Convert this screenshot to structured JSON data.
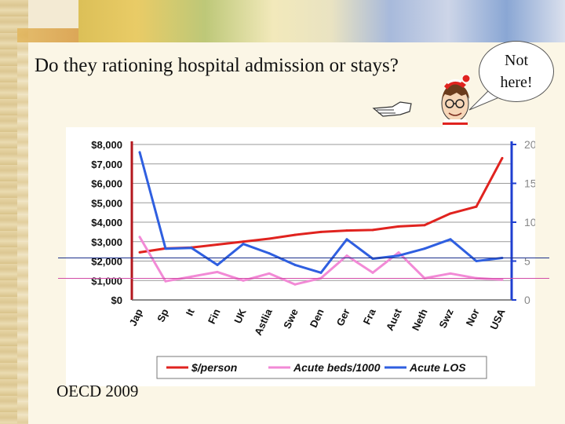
{
  "slide": {
    "title": "Do they rationing hospital admission or stays?",
    "footer": "OECD 2009",
    "bubble_line1": "Not",
    "bubble_line2": "here!",
    "character": "waldo-illustration"
  },
  "colors": {
    "cost": "#e0231f",
    "beds": "#f28ad6",
    "los": "#2f5fe0",
    "left_axis": "#b3171d",
    "right_axis": "#1f3fd0"
  },
  "chart_data": {
    "type": "line",
    "title": "",
    "categories": [
      "Jap",
      "Sp",
      "It",
      "Fin",
      "UK",
      "Astlia",
      "Swe",
      "Den",
      "Ger",
      "Fra",
      "Aust",
      "Neth",
      "Swz",
      "Nor",
      "USA"
    ],
    "y_left": {
      "ticks": [
        "$0",
        "$1,000",
        "$2,000",
        "$3,000",
        "$4,000",
        "$5,000",
        "$6,000",
        "$7,000",
        "$8,000"
      ],
      "ylim": [
        0,
        8000
      ]
    },
    "y_right": {
      "ticks": [
        "0",
        "5",
        "10",
        "15",
        "20"
      ],
      "ylim": [
        0,
        20
      ]
    },
    "series": [
      {
        "name": "$/person",
        "axis": "left",
        "color_key": "cost",
        "values": [
          2450,
          2650,
          2700,
          2850,
          3000,
          3150,
          3350,
          3500,
          3570,
          3600,
          3780,
          3850,
          4450,
          4800,
          7300
        ]
      },
      {
        "name": "Acute beds/1000",
        "axis": "right",
        "color_key": "beds",
        "values": [
          8.1,
          2.4,
          3.0,
          3.6,
          2.5,
          3.4,
          2.0,
          2.8,
          5.7,
          3.5,
          6.1,
          2.8,
          3.4,
          2.8,
          2.6
        ]
      },
      {
        "name": "Acute LOS",
        "axis": "right",
        "color_key": "los",
        "values": [
          19.0,
          6.6,
          6.7,
          4.5,
          7.2,
          6.0,
          4.5,
          3.5,
          7.8,
          5.3,
          5.7,
          6.6,
          7.8,
          5.0,
          5.4
        ]
      }
    ],
    "legend": [
      "$/person",
      "Acute beds/1000",
      "Acute LOS"
    ],
    "legend_position": "bottom"
  }
}
